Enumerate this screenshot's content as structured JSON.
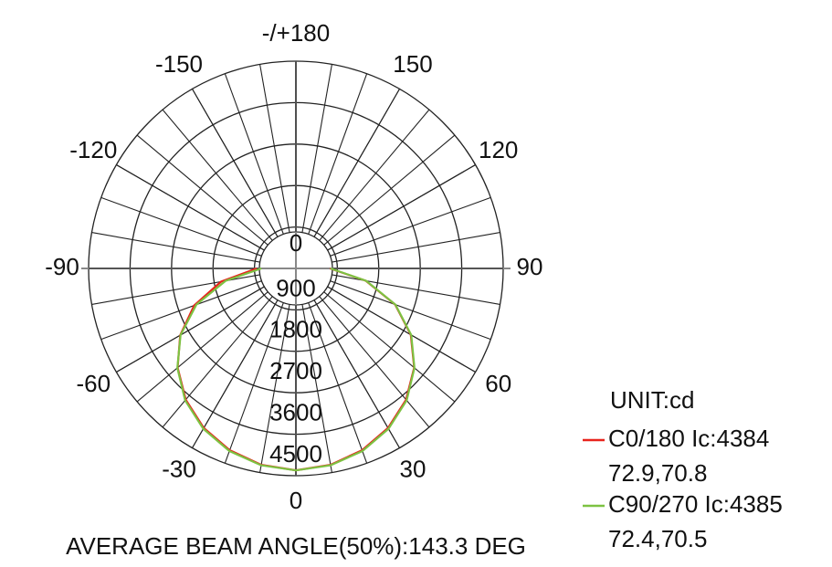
{
  "chart_data": {
    "type": "polar",
    "unit_label": "UNIT:cd",
    "note": "AVERAGE BEAM ANGLE(50%):143.3 DEG",
    "x": [
      -90,
      -80,
      -70,
      -60,
      -50,
      -40,
      -30,
      -20,
      -10,
      0,
      10,
      20,
      30,
      40,
      50,
      60,
      70,
      80,
      90
    ],
    "series": [
      {
        "name": "C0/180 Ic:4384",
        "beam": "72.9,70.8",
        "color": "#e8231c",
        "values": [
          850,
          1650,
          2350,
          2900,
          3350,
          3720,
          4000,
          4200,
          4330,
          4384,
          4330,
          4200,
          4000,
          3720,
          3350,
          2880,
          2290,
          1540,
          740
        ]
      },
      {
        "name": "C90/270 Ic:4385",
        "beam": "72.4,70.5",
        "color": "#7dc242",
        "values": [
          750,
          1550,
          2300,
          2890,
          3360,
          3740,
          4020,
          4220,
          4340,
          4385,
          4340,
          4220,
          4020,
          3740,
          3360,
          2890,
          2300,
          1550,
          750
        ]
      }
    ],
    "ylim": [
      0,
      4500
    ],
    "yticks": [
      0,
      900,
      1800,
      2700,
      3600,
      4500
    ],
    "xticks": [
      0,
      30,
      60,
      90,
      120,
      150,
      {
        "value": 180,
        "label": "-/+180"
      },
      -150,
      -120,
      -90,
      -60,
      -30
    ],
    "xminor_step": 10,
    "grid": true
  }
}
